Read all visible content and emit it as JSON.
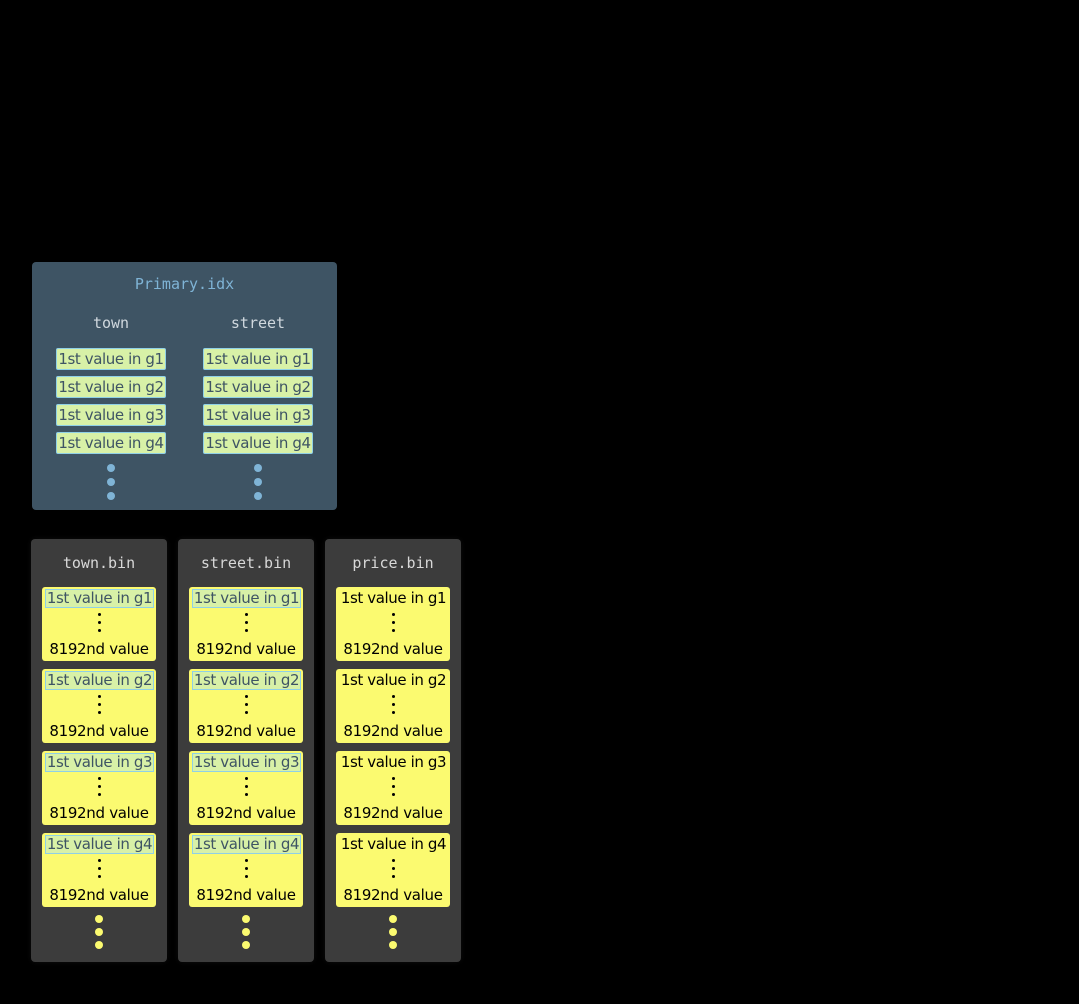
{
  "primary_index": {
    "title": "Primary.idx",
    "columns": [
      {
        "name": "town",
        "entries": [
          "1st value in g1",
          "1st value in g2",
          "1st value in g3",
          "1st value in g4"
        ]
      },
      {
        "name": "street",
        "entries": [
          "1st value in g1",
          "1st value in g2",
          "1st value in g3",
          "1st value in g4"
        ]
      }
    ]
  },
  "bin_files": [
    {
      "name": "town.bin",
      "in_primary_key": true,
      "granules": [
        {
          "first": "1st value in g1",
          "last": "8192nd value"
        },
        {
          "first": "1st value in g2",
          "last": "8192nd value"
        },
        {
          "first": "1st value in g3",
          "last": "8192nd value"
        },
        {
          "first": "1st value in g4",
          "last": "8192nd value"
        }
      ]
    },
    {
      "name": "street.bin",
      "in_primary_key": true,
      "granules": [
        {
          "first": "1st value in g1",
          "last": "8192nd value"
        },
        {
          "first": "1st value in g2",
          "last": "8192nd value"
        },
        {
          "first": "1st value in g3",
          "last": "8192nd value"
        },
        {
          "first": "1st value in g4",
          "last": "8192nd value"
        }
      ]
    },
    {
      "name": "price.bin",
      "in_primary_key": false,
      "granules": [
        {
          "first": "1st value in g1",
          "last": "8192nd value"
        },
        {
          "first": "1st value in g2",
          "last": "8192nd value"
        },
        {
          "first": "1st value in g3",
          "last": "8192nd value"
        },
        {
          "first": "1st value in g4",
          "last": "8192nd value"
        }
      ]
    }
  ],
  "colors": {
    "index_panel": "#3e5464",
    "index_entry": "#d8f1a7",
    "index_border": "#8fd0e6",
    "granule": "#fbfa70",
    "bin_panel": "#3c3c3c",
    "index_dots": "#7fb4d6",
    "bin_dots": "#fbfa70"
  }
}
